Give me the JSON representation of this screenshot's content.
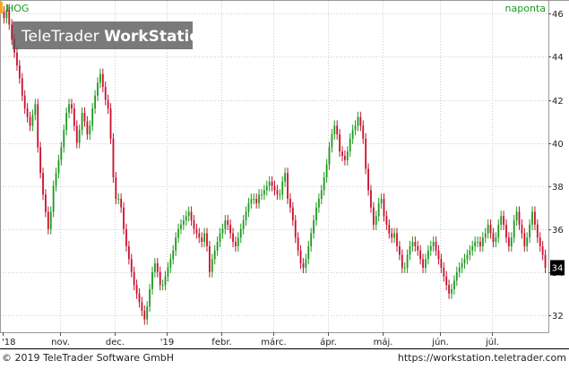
{
  "header": {
    "symbol": "HOG",
    "period": "naponta"
  },
  "watermark": {
    "brand_regular": "TeleTrader ",
    "brand_bold": "WorkStation"
  },
  "footer": {
    "copyright": "© 2019 TeleTrader Software GmbH",
    "url": "https://workstation.teletrader.com"
  },
  "colors": {
    "up": "#1d9a1d",
    "down": "#c8102e",
    "grid": "#cfcfcf",
    "symbol_marker": "#f5a623",
    "period_text": "#1d9a1d",
    "price_box": "#000000"
  },
  "chart_data": {
    "type": "candlestick",
    "symbol": "HOG",
    "interval": "naponta",
    "ylim": [
      31.2,
      46.6
    ],
    "y_ticks": [
      32,
      34,
      36,
      38,
      40,
      42,
      44,
      46
    ],
    "last_price_label": "34",
    "last_price": 34.2,
    "x_ticks": [
      {
        "label": "'18",
        "day": 0
      },
      {
        "label": "nov.",
        "day": 22
      },
      {
        "label": "dec.",
        "day": 43
      },
      {
        "label": "'19",
        "day": 63
      },
      {
        "label": "febr.",
        "day": 84
      },
      {
        "label": "márc.",
        "day": 104
      },
      {
        "label": "ápr.",
        "day": 125
      },
      {
        "label": "máj.",
        "day": 146
      },
      {
        "label": "jún.",
        "day": 168
      },
      {
        "label": "júl.",
        "day": 188
      }
    ],
    "closes": [
      45.8,
      46.2,
      45.5,
      44.8,
      44.2,
      43.6,
      43.0,
      42.2,
      41.6,
      41.2,
      40.8,
      41.3,
      41.8,
      39.8,
      38.6,
      37.6,
      36.8,
      36.0,
      36.8,
      38.0,
      38.6,
      39.2,
      39.8,
      40.6,
      41.4,
      41.8,
      41.6,
      40.8,
      40.0,
      40.6,
      41.4,
      41.0,
      40.4,
      40.8,
      41.6,
      42.2,
      42.8,
      43.2,
      42.6,
      42.0,
      41.6,
      40.2,
      38.4,
      37.4,
      37.4,
      37.0,
      36.0,
      35.2,
      34.6,
      34.0,
      33.4,
      33.0,
      32.6,
      32.2,
      31.8,
      32.4,
      33.2,
      34.0,
      34.4,
      34.0,
      33.4,
      33.4,
      33.8,
      34.2,
      34.6,
      35.0,
      35.6,
      36.0,
      36.2,
      36.4,
      36.6,
      36.8,
      36.4,
      36.0,
      35.8,
      35.6,
      35.4,
      35.8,
      35.2,
      34.0,
      34.6,
      35.0,
      35.4,
      35.8,
      36.0,
      36.4,
      36.2,
      35.8,
      35.4,
      35.2,
      35.6,
      36.0,
      36.4,
      36.8,
      37.2,
      37.4,
      37.4,
      37.2,
      37.6,
      37.6,
      37.8,
      38.0,
      38.2,
      38.0,
      37.8,
      37.6,
      37.6,
      38.2,
      38.6,
      37.4,
      37.0,
      36.4,
      35.6,
      35.0,
      34.4,
      34.2,
      34.6,
      35.2,
      35.8,
      36.4,
      37.0,
      37.4,
      37.8,
      38.4,
      39.0,
      39.8,
      40.4,
      40.8,
      40.4,
      39.6,
      39.4,
      39.2,
      39.6,
      40.2,
      40.6,
      40.8,
      41.2,
      40.8,
      40.2,
      38.8,
      37.8,
      37.0,
      36.2,
      36.6,
      37.2,
      37.4,
      36.6,
      36.2,
      35.8,
      35.6,
      35.8,
      35.2,
      34.8,
      34.2,
      34.2,
      34.8,
      35.2,
      35.4,
      35.2,
      35.0,
      34.6,
      34.2,
      34.6,
      35.0,
      35.2,
      35.4,
      35.0,
      34.6,
      34.2,
      33.8,
      33.4,
      33.0,
      33.2,
      33.6,
      34.0,
      34.2,
      34.4,
      34.6,
      34.8,
      35.0,
      35.2,
      35.4,
      35.4,
      35.2,
      35.6,
      35.8,
      36.2,
      35.8,
      35.4,
      35.6,
      36.2,
      36.6,
      36.2,
      35.6,
      35.2,
      35.6,
      36.4,
      36.8,
      36.2,
      35.8,
      35.2,
      35.6,
      36.2,
      36.8,
      36.2,
      35.6,
      35.2,
      34.8,
      34.2
    ]
  }
}
